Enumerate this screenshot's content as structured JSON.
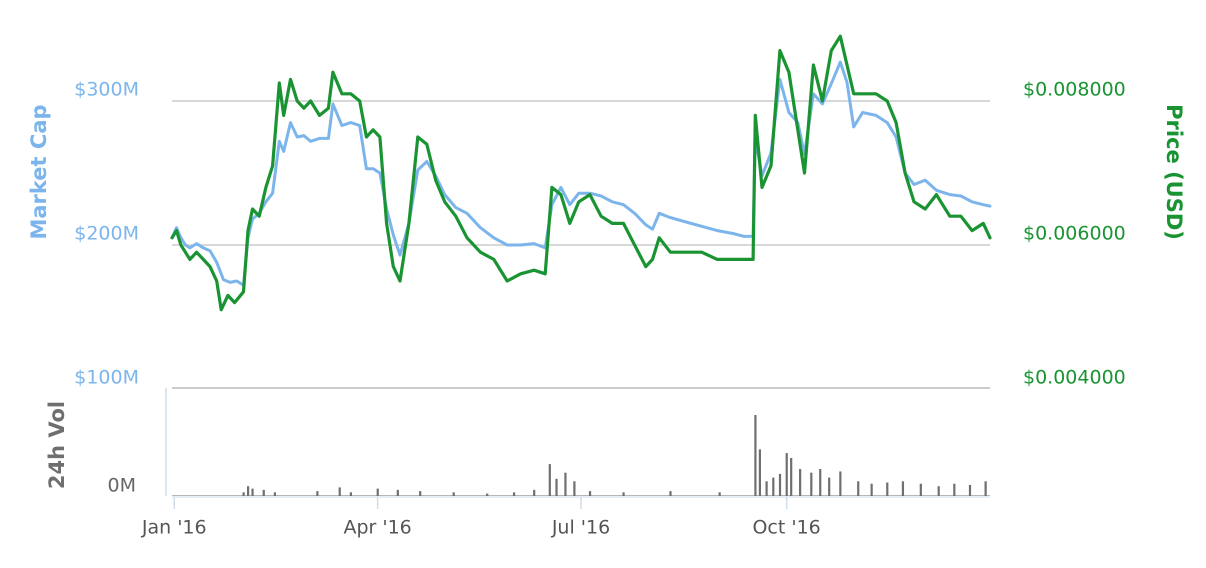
{
  "chart_data": {
    "type": "line",
    "colors": {
      "market_cap": "#7cb5ec",
      "price": "#1a9432",
      "volume": "#6f6f6f",
      "grid": "#cccccc",
      "x_tick_text": "#555555"
    },
    "x_axis": {
      "type": "datetime",
      "range": [
        "2015-12-31",
        "2016-12-31"
      ],
      "tick_labels": [
        {
          "date": "2016-01-01",
          "label": "Jan '16"
        },
        {
          "date": "2016-04-01",
          "label": "Apr '16"
        },
        {
          "date": "2016-07-01",
          "label": "Jul '16"
        },
        {
          "date": "2016-10-01",
          "label": "Oct '16"
        }
      ]
    },
    "left_axis": {
      "title": "Market Cap",
      "ylim": [
        100,
        300
      ],
      "ticks": [
        {
          "value": 300,
          "label": "$300M"
        },
        {
          "value": 200,
          "label": "$200M"
        },
        {
          "value": 100,
          "label": "$100M"
        }
      ]
    },
    "right_axis": {
      "title": "Price (USD)",
      "ylim": [
        0.004,
        0.008
      ],
      "ticks": [
        {
          "value": 0.008,
          "label": "$0.008000"
        },
        {
          "value": 0.006,
          "label": "$0.006000"
        },
        {
          "value": 0.004,
          "label": "$0.004000"
        }
      ]
    },
    "volume_axis": {
      "title": "24h Vol",
      "ylim": [
        0,
        70
      ],
      "ticks": [
        {
          "value": 0,
          "label": "0M"
        }
      ]
    },
    "grid": true,
    "legend": "none",
    "series": [
      {
        "key": "market_cap",
        "axis": "left",
        "unit": "$M",
        "points": [
          [
            "2015-12-31",
            205
          ],
          [
            "2016-01-02",
            212
          ],
          [
            "2016-01-04",
            205
          ],
          [
            "2016-01-06",
            200
          ],
          [
            "2016-01-08",
            198
          ],
          [
            "2016-01-11",
            201
          ],
          [
            "2016-01-14",
            198
          ],
          [
            "2016-01-17",
            196
          ],
          [
            "2016-01-20",
            188
          ],
          [
            "2016-01-23",
            176
          ],
          [
            "2016-01-26",
            174
          ],
          [
            "2016-01-29",
            175
          ],
          [
            "2016-02-01",
            172
          ],
          [
            "2016-02-03",
            205
          ],
          [
            "2016-02-05",
            218
          ],
          [
            "2016-02-08",
            222
          ],
          [
            "2016-02-11",
            230
          ],
          [
            "2016-02-14",
            236
          ],
          [
            "2016-02-17",
            272
          ],
          [
            "2016-02-19",
            265
          ],
          [
            "2016-02-22",
            285
          ],
          [
            "2016-02-25",
            275
          ],
          [
            "2016-02-28",
            276
          ],
          [
            "2016-03-02",
            272
          ],
          [
            "2016-03-06",
            274
          ],
          [
            "2016-03-10",
            274
          ],
          [
            "2016-03-12",
            298
          ],
          [
            "2016-03-16",
            283
          ],
          [
            "2016-03-20",
            285
          ],
          [
            "2016-03-24",
            283
          ],
          [
            "2016-03-27",
            253
          ],
          [
            "2016-03-30",
            253
          ],
          [
            "2016-04-02",
            250
          ],
          [
            "2016-04-05",
            225
          ],
          [
            "2016-04-08",
            207
          ],
          [
            "2016-04-11",
            193
          ],
          [
            "2016-04-15",
            215
          ],
          [
            "2016-04-19",
            252
          ],
          [
            "2016-04-23",
            258
          ],
          [
            "2016-04-27",
            248
          ],
          [
            "2016-05-01",
            235
          ],
          [
            "2016-05-06",
            226
          ],
          [
            "2016-05-11",
            222
          ],
          [
            "2016-05-17",
            212
          ],
          [
            "2016-05-23",
            205
          ],
          [
            "2016-05-29",
            200
          ],
          [
            "2016-06-04",
            200
          ],
          [
            "2016-06-10",
            201
          ],
          [
            "2016-06-15",
            198
          ],
          [
            "2016-06-18",
            228
          ],
          [
            "2016-06-22",
            240
          ],
          [
            "2016-06-26",
            228
          ],
          [
            "2016-06-30",
            236
          ],
          [
            "2016-07-05",
            236
          ],
          [
            "2016-07-10",
            234
          ],
          [
            "2016-07-15",
            230
          ],
          [
            "2016-07-20",
            228
          ],
          [
            "2016-07-25",
            222
          ],
          [
            "2016-07-30",
            214
          ],
          [
            "2016-08-02",
            211
          ],
          [
            "2016-08-05",
            222
          ],
          [
            "2016-08-10",
            219
          ],
          [
            "2016-08-17",
            216
          ],
          [
            "2016-08-24",
            213
          ],
          [
            "2016-08-31",
            210
          ],
          [
            "2016-09-07",
            208
          ],
          [
            "2016-09-12",
            206
          ],
          [
            "2016-09-16",
            206
          ],
          [
            "2016-09-17",
            275
          ],
          [
            "2016-09-20",
            248
          ],
          [
            "2016-09-24",
            264
          ],
          [
            "2016-09-28",
            315
          ],
          [
            "2016-10-02",
            292
          ],
          [
            "2016-10-06",
            285
          ],
          [
            "2016-10-09",
            263
          ],
          [
            "2016-10-13",
            305
          ],
          [
            "2016-10-17",
            298
          ],
          [
            "2016-10-21",
            312
          ],
          [
            "2016-10-25",
            327
          ],
          [
            "2016-10-28",
            313
          ],
          [
            "2016-10-31",
            282
          ],
          [
            "2016-11-04",
            292
          ],
          [
            "2016-11-10",
            290
          ],
          [
            "2016-11-15",
            285
          ],
          [
            "2016-11-19",
            275
          ],
          [
            "2016-11-23",
            250
          ],
          [
            "2016-11-27",
            242
          ],
          [
            "2016-12-02",
            245
          ],
          [
            "2016-12-07",
            238
          ],
          [
            "2016-12-13",
            235
          ],
          [
            "2016-12-18",
            234
          ],
          [
            "2016-12-23",
            230
          ],
          [
            "2016-12-28",
            228
          ],
          [
            "2016-12-31",
            227
          ]
        ]
      },
      {
        "key": "price",
        "axis": "right",
        "unit": "USD",
        "points": [
          [
            "2015-12-31",
            0.0061
          ],
          [
            "2016-01-02",
            0.0062
          ],
          [
            "2016-01-04",
            0.006
          ],
          [
            "2016-01-06",
            0.0059
          ],
          [
            "2016-01-08",
            0.0058
          ],
          [
            "2016-01-11",
            0.0059
          ],
          [
            "2016-01-14",
            0.0058
          ],
          [
            "2016-01-17",
            0.0057
          ],
          [
            "2016-01-20",
            0.0055
          ],
          [
            "2016-01-22",
            0.0051
          ],
          [
            "2016-01-25",
            0.0053
          ],
          [
            "2016-01-28",
            0.0052
          ],
          [
            "2016-02-01",
            0.00535
          ],
          [
            "2016-02-03",
            0.0062
          ],
          [
            "2016-02-05",
            0.0065
          ],
          [
            "2016-02-08",
            0.0064
          ],
          [
            "2016-02-11",
            0.0068
          ],
          [
            "2016-02-14",
            0.0071
          ],
          [
            "2016-02-17",
            0.00825
          ],
          [
            "2016-02-19",
            0.0078
          ],
          [
            "2016-02-22",
            0.0083
          ],
          [
            "2016-02-25",
            0.008
          ],
          [
            "2016-02-28",
            0.0079
          ],
          [
            "2016-03-02",
            0.008
          ],
          [
            "2016-03-06",
            0.0078
          ],
          [
            "2016-03-10",
            0.0079
          ],
          [
            "2016-03-12",
            0.0084
          ],
          [
            "2016-03-16",
            0.0081
          ],
          [
            "2016-03-20",
            0.0081
          ],
          [
            "2016-03-24",
            0.008
          ],
          [
            "2016-03-27",
            0.0075
          ],
          [
            "2016-03-30",
            0.0076
          ],
          [
            "2016-04-02",
            0.0075
          ],
          [
            "2016-04-05",
            0.0063
          ],
          [
            "2016-04-08",
            0.0057
          ],
          [
            "2016-04-11",
            0.0055
          ],
          [
            "2016-04-15",
            0.0063
          ],
          [
            "2016-04-19",
            0.0075
          ],
          [
            "2016-04-23",
            0.0074
          ],
          [
            "2016-04-27",
            0.0069
          ],
          [
            "2016-05-01",
            0.0066
          ],
          [
            "2016-05-06",
            0.0064
          ],
          [
            "2016-05-11",
            0.0061
          ],
          [
            "2016-05-17",
            0.0059
          ],
          [
            "2016-05-23",
            0.0058
          ],
          [
            "2016-05-29",
            0.0055
          ],
          [
            "2016-06-04",
            0.0056
          ],
          [
            "2016-06-10",
            0.00565
          ],
          [
            "2016-06-15",
            0.0056
          ],
          [
            "2016-06-18",
            0.0068
          ],
          [
            "2016-06-22",
            0.0067
          ],
          [
            "2016-06-26",
            0.0063
          ],
          [
            "2016-06-30",
            0.0066
          ],
          [
            "2016-07-05",
            0.0067
          ],
          [
            "2016-07-10",
            0.0064
          ],
          [
            "2016-07-15",
            0.0063
          ],
          [
            "2016-07-20",
            0.0063
          ],
          [
            "2016-07-25",
            0.006
          ],
          [
            "2016-07-30",
            0.0057
          ],
          [
            "2016-08-02",
            0.0058
          ],
          [
            "2016-08-05",
            0.0061
          ],
          [
            "2016-08-10",
            0.0059
          ],
          [
            "2016-08-17",
            0.0059
          ],
          [
            "2016-08-24",
            0.0059
          ],
          [
            "2016-08-31",
            0.0058
          ],
          [
            "2016-09-07",
            0.0058
          ],
          [
            "2016-09-12",
            0.0058
          ],
          [
            "2016-09-16",
            0.0058
          ],
          [
            "2016-09-17",
            0.0078
          ],
          [
            "2016-09-20",
            0.0068
          ],
          [
            "2016-09-24",
            0.0071
          ],
          [
            "2016-09-28",
            0.0087
          ],
          [
            "2016-10-02",
            0.0084
          ],
          [
            "2016-10-06",
            0.0076
          ],
          [
            "2016-10-09",
            0.007
          ],
          [
            "2016-10-13",
            0.0085
          ],
          [
            "2016-10-17",
            0.008
          ],
          [
            "2016-10-21",
            0.0087
          ],
          [
            "2016-10-25",
            0.0089
          ],
          [
            "2016-10-28",
            0.0085
          ],
          [
            "2016-10-31",
            0.0081
          ],
          [
            "2016-11-04",
            0.0081
          ],
          [
            "2016-11-10",
            0.0081
          ],
          [
            "2016-11-15",
            0.008
          ],
          [
            "2016-11-19",
            0.0077
          ],
          [
            "2016-11-23",
            0.007
          ],
          [
            "2016-11-27",
            0.0066
          ],
          [
            "2016-12-02",
            0.0065
          ],
          [
            "2016-12-07",
            0.0067
          ],
          [
            "2016-12-13",
            0.0064
          ],
          [
            "2016-12-18",
            0.0064
          ],
          [
            "2016-12-23",
            0.0062
          ],
          [
            "2016-12-28",
            0.0063
          ],
          [
            "2016-12-31",
            0.0061
          ]
        ]
      },
      {
        "key": "volume",
        "axis": "volume",
        "type": "bar",
        "unit": "$M",
        "points": [
          [
            "2016-02-01",
            3
          ],
          [
            "2016-02-03",
            8
          ],
          [
            "2016-02-05",
            6
          ],
          [
            "2016-02-10",
            5
          ],
          [
            "2016-02-15",
            3
          ],
          [
            "2016-03-05",
            4
          ],
          [
            "2016-03-15",
            7
          ],
          [
            "2016-03-20",
            3
          ],
          [
            "2016-04-01",
            6
          ],
          [
            "2016-04-10",
            5
          ],
          [
            "2016-04-20",
            4
          ],
          [
            "2016-05-05",
            3
          ],
          [
            "2016-05-20",
            2
          ],
          [
            "2016-06-01",
            3
          ],
          [
            "2016-06-10",
            5
          ],
          [
            "2016-06-17",
            26
          ],
          [
            "2016-06-20",
            14
          ],
          [
            "2016-06-24",
            19
          ],
          [
            "2016-06-28",
            12
          ],
          [
            "2016-07-05",
            4
          ],
          [
            "2016-07-20",
            3
          ],
          [
            "2016-08-10",
            4
          ],
          [
            "2016-09-01",
            3
          ],
          [
            "2016-09-17",
            66
          ],
          [
            "2016-09-19",
            38
          ],
          [
            "2016-09-22",
            12
          ],
          [
            "2016-09-25",
            15
          ],
          [
            "2016-09-28",
            18
          ],
          [
            "2016-10-01",
            35
          ],
          [
            "2016-10-03",
            31
          ],
          [
            "2016-10-07",
            22
          ],
          [
            "2016-10-12",
            19
          ],
          [
            "2016-10-16",
            22
          ],
          [
            "2016-10-20",
            15
          ],
          [
            "2016-10-25",
            20
          ],
          [
            "2016-11-02",
            12
          ],
          [
            "2016-11-08",
            10
          ],
          [
            "2016-11-15",
            11
          ],
          [
            "2016-11-22",
            12
          ],
          [
            "2016-11-30",
            10
          ],
          [
            "2016-12-08",
            8
          ],
          [
            "2016-12-15",
            10
          ],
          [
            "2016-12-22",
            9
          ],
          [
            "2016-12-29",
            12
          ]
        ]
      }
    ]
  }
}
